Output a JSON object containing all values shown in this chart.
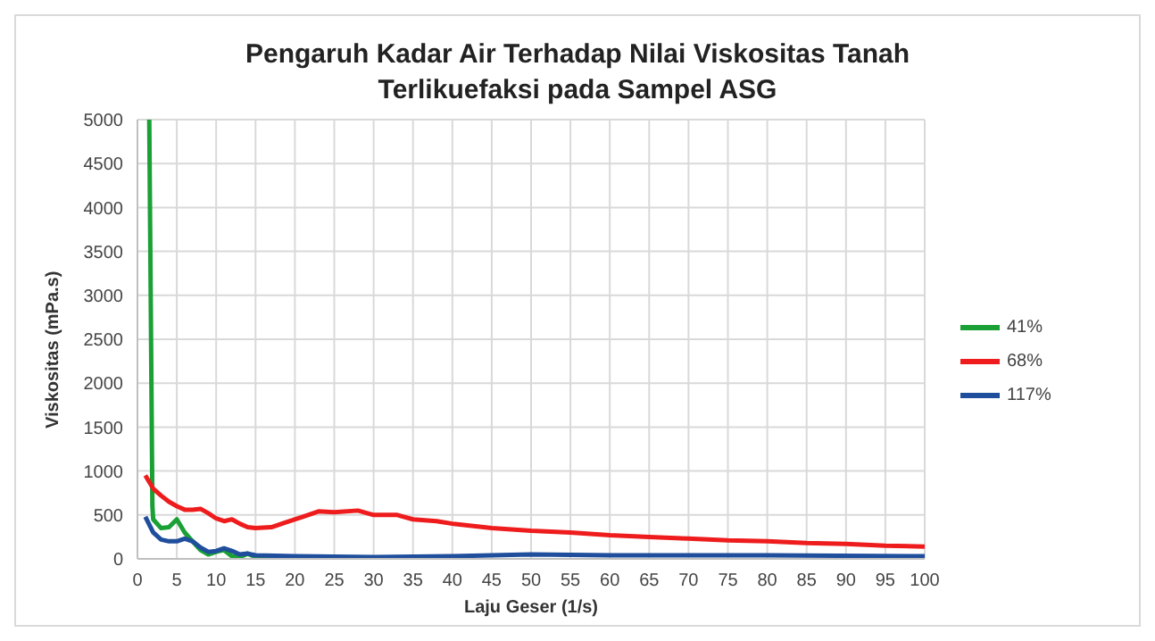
{
  "chart_data": {
    "type": "line",
    "title": "Pengaruh Kadar Air Terhadap Nilai Viskositas Tanah Terlikuefaksi pada Sampel ASG",
    "xlabel": "Laju Geser (1/s)",
    "ylabel": "Viskositas  (mPa.s)",
    "xlim": [
      0,
      100
    ],
    "xticks": [
      0,
      5,
      10,
      15,
      20,
      25,
      30,
      35,
      40,
      45,
      50,
      55,
      60,
      65,
      70,
      75,
      80,
      85,
      90,
      95,
      100
    ],
    "ylim": [
      0,
      5000
    ],
    "yticks": [
      0,
      500,
      1000,
      1500,
      2000,
      2500,
      3000,
      3500,
      4000,
      4500,
      5000
    ],
    "grid": true,
    "legend": "right",
    "marker": "none",
    "series": [
      {
        "name": "41%",
        "color": "#1aa035",
        "x": [
          1.5,
          1.9,
          2,
          3,
          4,
          5,
          6,
          7,
          8,
          9,
          10,
          11,
          12,
          13,
          14,
          15,
          20
        ],
        "values": [
          5000,
          600,
          450,
          350,
          360,
          450,
          300,
          200,
          100,
          50,
          80,
          100,
          30,
          20,
          60,
          20,
          10
        ]
      },
      {
        "name": "68%",
        "color": "#ee1c1c",
        "x": [
          1,
          2,
          3,
          4,
          5,
          6,
          7,
          8,
          9,
          10,
          11,
          12,
          13,
          14,
          15,
          17,
          19,
          21,
          23,
          25,
          28,
          30,
          33,
          35,
          38,
          40,
          45,
          50,
          55,
          60,
          65,
          70,
          75,
          80,
          85,
          90,
          95,
          100
        ],
        "values": [
          950,
          800,
          720,
          650,
          600,
          560,
          560,
          570,
          520,
          460,
          430,
          450,
          400,
          360,
          350,
          360,
          420,
          480,
          540,
          530,
          550,
          500,
          500,
          450,
          430,
          400,
          350,
          320,
          300,
          270,
          250,
          230,
          210,
          200,
          180,
          170,
          150,
          140
        ]
      },
      {
        "name": "117%",
        "color": "#1f4e9c",
        "x": [
          1,
          2,
          3,
          4,
          5,
          6,
          7,
          8,
          9,
          10,
          11,
          12,
          13,
          14,
          15,
          20,
          30,
          40,
          50,
          60,
          80,
          100
        ],
        "values": [
          480,
          300,
          220,
          200,
          200,
          230,
          200,
          130,
          80,
          90,
          120,
          90,
          50,
          60,
          40,
          30,
          20,
          30,
          50,
          40,
          40,
          30
        ]
      }
    ]
  }
}
